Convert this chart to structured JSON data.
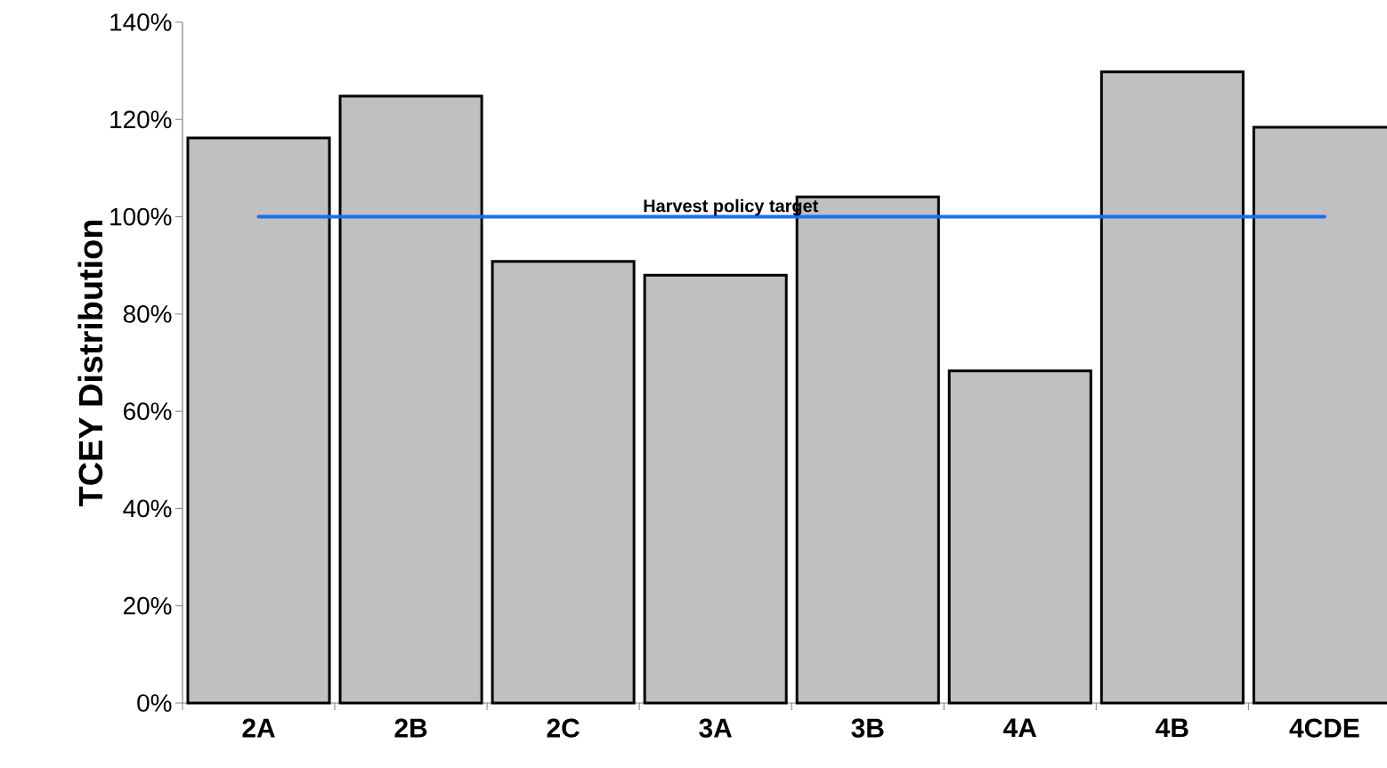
{
  "chart_data": {
    "type": "bar",
    "ylabel": "TCEY Distribution",
    "categories": [
      "2A",
      "2B",
      "2C",
      "3A",
      "3B",
      "4A",
      "4B",
      "4CDE"
    ],
    "values": [
      116.2,
      124.8,
      90.8,
      88.0,
      104.1,
      68.3,
      129.8,
      118.4
    ],
    "color": "#c0c0c0",
    "ylim": [
      0,
      140
    ],
    "yticks": [
      {
        "value": 0,
        "label": "0%"
      },
      {
        "value": 20,
        "label": "20%"
      },
      {
        "value": 40,
        "label": "40%"
      },
      {
        "value": 60,
        "label": "60%"
      },
      {
        "value": 80,
        "label": "80%"
      },
      {
        "value": 100,
        "label": "100%"
      },
      {
        "value": 120,
        "label": "120%"
      },
      {
        "value": 140,
        "label": "140%"
      }
    ],
    "ref_lines": [
      {
        "axis": "y",
        "value": 100,
        "label": "Harvest policy target",
        "color": "#1f6ef2",
        "line_style": "solid"
      }
    ]
  }
}
